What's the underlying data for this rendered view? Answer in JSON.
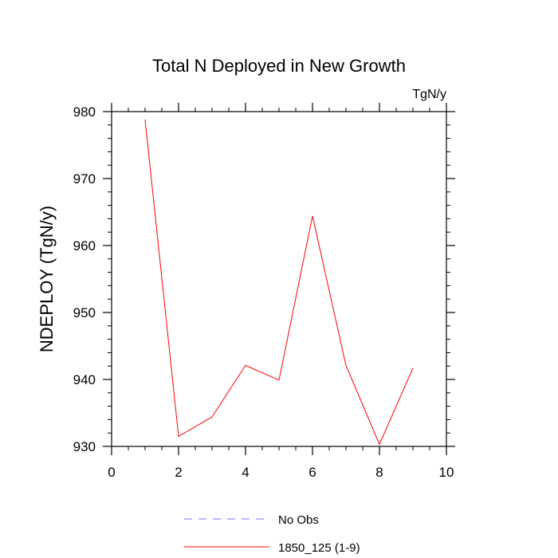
{
  "chart_data": {
    "type": "line",
    "title": "Total N Deployed in New Growth",
    "units": "TgN/y",
    "xlabel": "",
    "ylabel": "NDEPLOY  (TgN/y)",
    "xlim": [
      0,
      10
    ],
    "ylim": [
      930,
      980
    ],
    "x_ticks": [
      0,
      2,
      4,
      6,
      8,
      10
    ],
    "y_ticks": [
      930,
      940,
      950,
      960,
      970,
      980
    ],
    "x_tick_labels": [
      "0",
      "2",
      "4",
      "6",
      "8",
      "10"
    ],
    "y_tick_labels": [
      "930",
      "940",
      "950",
      "960",
      "970",
      "980"
    ],
    "grid": false,
    "legend_position": "bottom",
    "series": [
      {
        "name": "1850_125 (1-9)",
        "color": "#ff0000",
        "style": "solid",
        "x": [
          1,
          2,
          3,
          4,
          5,
          6,
          7,
          8,
          9
        ],
        "y": [
          978.8,
          931.5,
          934.4,
          942.1,
          939.9,
          964.4,
          942.1,
          930.3,
          941.7
        ]
      }
    ],
    "legend": [
      {
        "label": "No Obs",
        "color": "#7777ff",
        "style": "dashed"
      },
      {
        "label": "1850_125 (1-9)",
        "color": "#ff0000",
        "style": "solid"
      }
    ]
  }
}
